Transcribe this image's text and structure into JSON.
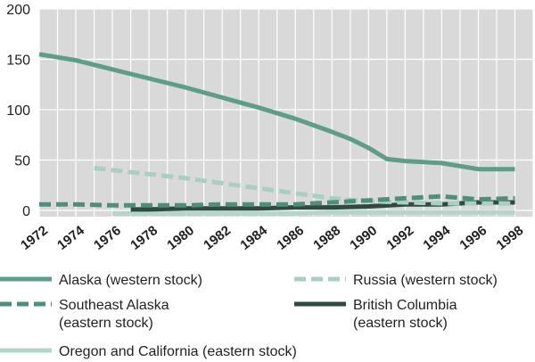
{
  "chart_data": {
    "type": "line",
    "title": "",
    "xlabel": "",
    "ylabel": "",
    "xlim": [
      1972,
      1999
    ],
    "ylim": [
      0,
      200
    ],
    "yticks": [
      "0",
      "50",
      "100",
      "150",
      "200"
    ],
    "xticks": [
      "1972",
      "1974",
      "1976",
      "1978",
      "1980",
      "1982",
      "1984",
      "1986",
      "1988",
      "1990",
      "1992",
      "1994",
      "1996",
      "1998"
    ],
    "grid": true,
    "legend_position": "bottom",
    "background_color": "#d9d9d9",
    "grid_color": "#ffffff",
    "series": [
      {
        "name": "Alaska (western stock)",
        "style": "solid",
        "color": "#5e9e88",
        "x": [
          1972,
          1974,
          1976,
          1978,
          1980,
          1982,
          1984,
          1986,
          1988,
          1989,
          1990,
          1991,
          1992,
          1994,
          1996,
          1998
        ],
        "y": [
          155,
          149,
          140,
          131,
          122,
          112,
          102,
          91,
          78,
          71,
          62,
          51,
          49,
          47,
          41,
          41
        ]
      },
      {
        "name": "Russia (western stock)",
        "style": "dashed",
        "color": "#a9cfc0",
        "x": [
          1975,
          1976,
          1978,
          1980,
          1982,
          1984,
          1986,
          1988,
          1990,
          1992,
          1994,
          1996,
          1998
        ],
        "y": [
          42,
          40,
          36,
          32,
          27,
          22,
          17,
          12,
          9,
          8,
          7,
          7,
          7
        ]
      },
      {
        "name": "Southeast Alaska\n(eastern stock)",
        "style": "dashed",
        "color": "#4f8f79",
        "x": [
          1972,
          1974,
          1976,
          1978,
          1980,
          1982,
          1984,
          1986,
          1988,
          1990,
          1992,
          1994,
          1996,
          1998
        ],
        "y": [
          6,
          6,
          5,
          5,
          5,
          6,
          6,
          6,
          8,
          10,
          12,
          14,
          11,
          12
        ]
      },
      {
        "name": "British Columbia\n(eastern stock)",
        "style": "solid",
        "color": "#2f4a41",
        "x": [
          1977,
          1978,
          1980,
          1982,
          1984,
          1986,
          1988,
          1990,
          1992,
          1994,
          1996,
          1998
        ],
        "y": [
          1,
          1,
          2,
          2,
          2,
          3,
          3,
          4,
          6,
          6,
          8,
          8
        ]
      },
      {
        "name": "Oregon and California (eastern stock)",
        "style": "solid",
        "color": "#b4d6c8",
        "x": [
          1976,
          1978,
          1980,
          1982,
          1984,
          1986,
          1988,
          1990,
          1992,
          1994,
          1996,
          1998
        ],
        "y": [
          -3,
          -3,
          -3,
          -3,
          -3,
          -3,
          -2,
          -2,
          -2,
          -2,
          -2,
          -2
        ]
      }
    ]
  }
}
